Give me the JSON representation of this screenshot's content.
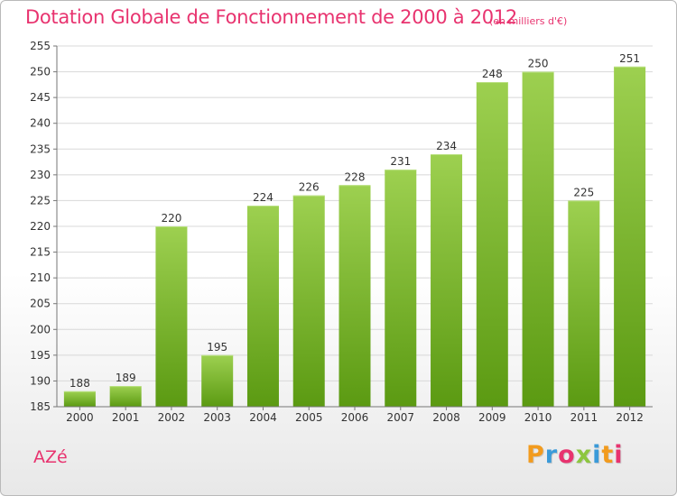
{
  "header": {
    "title": "Dotation Globale de Fonctionnement de 2000 à 2012",
    "subtitle": "(en milliers d'€)"
  },
  "footer": {
    "commune": "AZé",
    "logo_text": "Proxiti",
    "logo_colors": [
      "#f29b1e",
      "#3a9ad9",
      "#e8336f",
      "#8dc63f",
      "#3a9ad9",
      "#f29b1e",
      "#e8336f"
    ]
  },
  "colors": {
    "bar_top": "#9dd050",
    "bar_bottom": "#5b9a12",
    "label": "#333333",
    "grid": "#d8d8d8",
    "axis": "#777777"
  },
  "chart_data": {
    "type": "bar",
    "categories": [
      "2000",
      "2001",
      "2002",
      "2003",
      "2004",
      "2005",
      "2006",
      "2007",
      "2008",
      "2009",
      "2010",
      "2011",
      "2012"
    ],
    "values": [
      188,
      189,
      220,
      195,
      224,
      226,
      228,
      231,
      234,
      248,
      250,
      225,
      251
    ],
    "ylim": [
      185,
      255
    ],
    "yticks": [
      185,
      190,
      195,
      200,
      205,
      210,
      215,
      220,
      225,
      230,
      235,
      240,
      245,
      250,
      255
    ],
    "grid": true,
    "data_labels": true
  }
}
